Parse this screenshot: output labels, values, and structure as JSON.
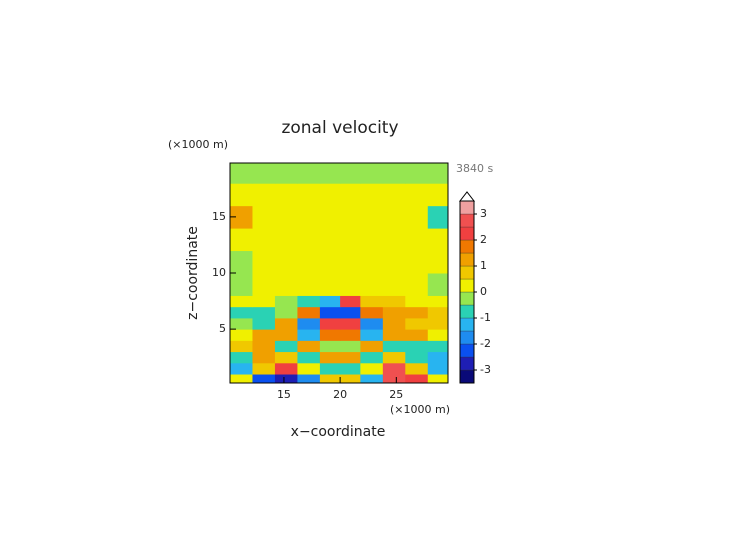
{
  "chart_data": {
    "type": "contour",
    "title": "zonal velocity",
    "time_label": "3840 s",
    "x_label": "x−coordinate",
    "y_label": "z−coordinate",
    "x_unit": "(×1000 m)",
    "y_unit": "(×1000 m)",
    "xlim": [
      10.2,
      29.6
    ],
    "ylim": [
      0.2,
      19.8
    ],
    "xticks": [
      15,
      20,
      25
    ],
    "yticks": [
      5,
      10,
      15
    ],
    "x_edges": [
      10.2,
      12.2,
      14.2,
      16.2,
      18.2,
      20,
      21.8,
      23.8,
      25.8,
      27.8,
      29.6
    ],
    "y_edges": [
      0.2,
      1,
      2,
      3,
      4,
      5,
      6,
      7,
      8,
      10,
      12,
      14,
      16,
      18,
      19.8
    ],
    "z": [
      [
        0.3,
        -2.5,
        -3,
        -2,
        0.5,
        0.5,
        -1.5,
        2.8,
        2,
        0.3
      ],
      [
        -1.2,
        0.8,
        2.2,
        0.4,
        -0.6,
        -0.6,
        0.4,
        2.6,
        0.8,
        -1.2
      ],
      [
        -0.6,
        1.2,
        0.5,
        -0.8,
        1.2,
        1.2,
        -0.8,
        0.5,
        -0.8,
        -1.2
      ],
      [
        0.8,
        1.4,
        -0.8,
        1.0,
        -0.4,
        -0.4,
        1.0,
        -0.8,
        -1.0,
        -0.6
      ],
      [
        0.3,
        1.0,
        1.2,
        -1.2,
        1.6,
        1.6,
        -1.2,
        1.2,
        1.0,
        0.3
      ],
      [
        -0.4,
        -0.6,
        1.2,
        -1.6,
        2.4,
        2.4,
        -2.0,
        1.2,
        0.8,
        0.5
      ],
      [
        -0.6,
        -0.8,
        -0.4,
        1.6,
        -2.2,
        -2.2,
        1.8,
        1.2,
        1.0,
        0.5
      ],
      [
        0.2,
        0.3,
        -0.4,
        -0.8,
        -1.4,
        2.0,
        0.8,
        0.6,
        0.4,
        0.2
      ],
      [
        -0.3,
        0.2,
        0.2,
        0.3,
        0.3,
        0.3,
        0.3,
        0.2,
        0.2,
        -0.3
      ],
      [
        -0.2,
        0.2,
        0.2,
        0.2,
        0.2,
        0.2,
        0.2,
        0.2,
        0.2,
        0.2
      ],
      [
        0.2,
        0.2,
        0.2,
        0.2,
        0.2,
        0.2,
        0.2,
        0.2,
        0.2,
        0.2
      ],
      [
        1.0,
        0.2,
        0.2,
        0.2,
        0.2,
        0.2,
        0.2,
        0.2,
        0.2,
        -0.8
      ],
      [
        0.2,
        0.2,
        0.2,
        0.2,
        0.2,
        0.2,
        0.2,
        0.2,
        0.2,
        0.2
      ],
      [
        -0.2,
        -0.2,
        -0.2,
        -0.2,
        -0.2,
        -0.2,
        -0.2,
        -0.2,
        -0.2,
        -0.2
      ]
    ],
    "levels": [
      -3.5,
      -3,
      -2.5,
      -2,
      -1.5,
      -1,
      -0.5,
      0,
      0.5,
      1,
      1.5,
      2,
      2.5,
      3,
      3.5
    ],
    "colors": [
      "#0a0a78",
      "#1e1eb4",
      "#0a50f0",
      "#1e8cf0",
      "#28b4f0",
      "#2ad2b4",
      "#96e650",
      "#f0f000",
      "#f0c800",
      "#f0a000",
      "#f07800",
      "#f04040",
      "#f05050",
      "#f0a0a0"
    ],
    "colorbar_ticks": [
      -3,
      -2,
      -1,
      0,
      1,
      2,
      3
    ]
  }
}
